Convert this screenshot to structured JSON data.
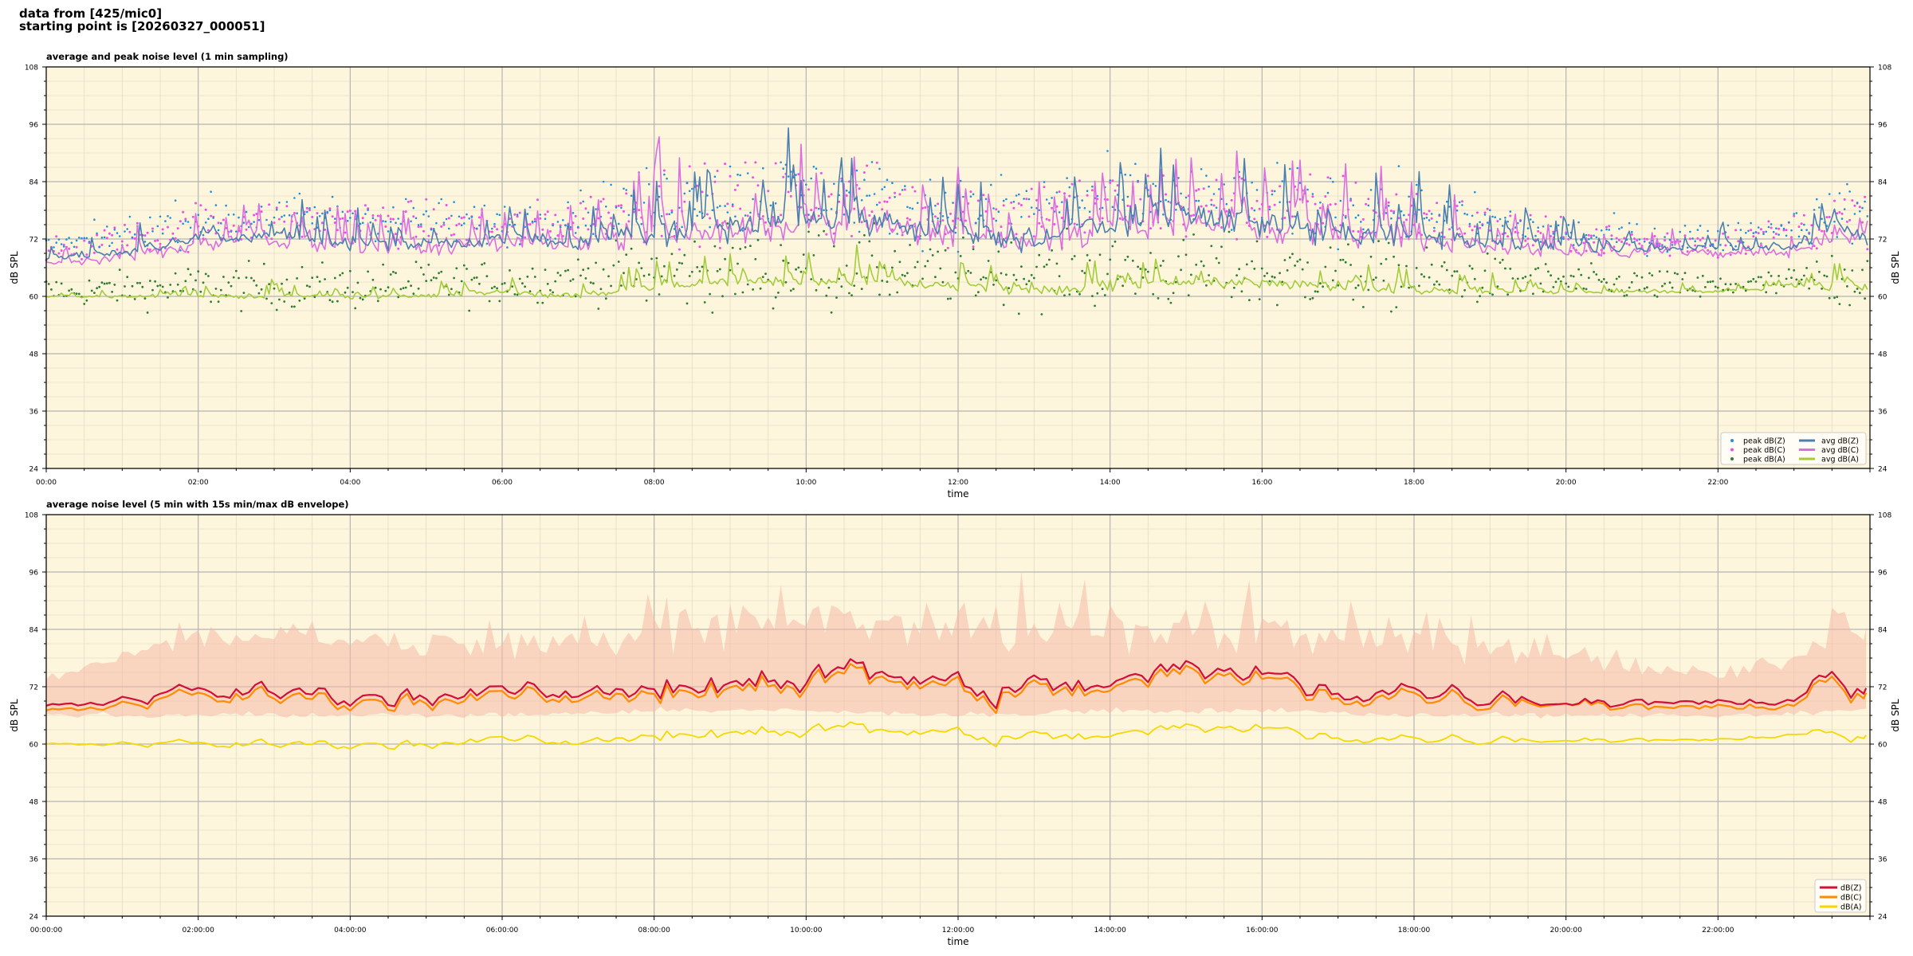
{
  "header": {
    "line1": "data from [425/mic0]",
    "line2": "starting point is [20260327_000051]"
  },
  "colors": {
    "plot_bg": "#fdf6dc",
    "peak_z": "#1f8fd8",
    "peak_c": "#ee4fe6",
    "peak_a": "#2e7d32",
    "avg_z": "#4a7fb0",
    "avg_c": "#dd6ee0",
    "avg_a": "#a3cc3c",
    "env": "#f6b8a8",
    "dbz": "#d0103a",
    "dbc": "#ff8c00",
    "dba": "#f4d800"
  },
  "chart_data": [
    {
      "type": "line",
      "title": "average and peak noise level (1 min sampling)",
      "xlabel": "time",
      "ylabel": "dB SPL",
      "ylim": [
        24,
        108
      ],
      "xlim_hours": [
        0,
        24
      ],
      "yticks": [
        24,
        36,
        48,
        60,
        72,
        84,
        96,
        108
      ],
      "xtick_labels": [
        "00:00",
        "02:00",
        "04:00",
        "06:00",
        "08:00",
        "10:00",
        "12:00",
        "14:00",
        "16:00",
        "18:00",
        "20:00",
        "22:00"
      ],
      "grid": true,
      "legend": "bottom-right",
      "legend_entries": [
        "peak dB(Z)",
        "peak dB(C)",
        "peak dB(A)",
        "avg dB(Z)",
        "avg dB(C)",
        "avg dB(A)"
      ],
      "series": [
        {
          "name": "avg dB(Z)",
          "x": [
            0,
            1,
            2,
            3,
            4,
            5,
            6,
            7,
            8,
            9,
            10,
            11,
            12,
            13,
            14,
            15,
            16,
            17,
            18,
            19,
            20,
            21,
            22,
            23,
            23.5,
            23.95
          ],
          "values": [
            68,
            69,
            72,
            72,
            71,
            71,
            72,
            71,
            73,
            75,
            75,
            76,
            73,
            72,
            74,
            76,
            75,
            73,
            72,
            71,
            70,
            70,
            70,
            70,
            75,
            73
          ]
        },
        {
          "name": "avg dB(C)",
          "x": [
            0,
            1,
            2,
            3,
            4,
            5,
            6,
            7,
            8,
            9,
            10,
            11,
            12,
            13,
            14,
            15,
            16,
            17,
            18,
            19,
            20,
            21,
            22,
            23,
            23.5,
            23.95
          ],
          "values": [
            67,
            68,
            71,
            71,
            70,
            70,
            71,
            70,
            72,
            74,
            74,
            75,
            72,
            71,
            73,
            75,
            74,
            72,
            71,
            70,
            69,
            69,
            69,
            69,
            73,
            72
          ]
        },
        {
          "name": "avg dB(A)",
          "x": [
            0,
            1,
            2,
            3,
            4,
            5,
            6,
            7,
            8,
            9,
            10,
            11,
            12,
            13,
            14,
            15,
            16,
            17,
            18,
            19,
            20,
            21,
            22,
            23,
            23.5,
            23.95
          ],
          "values": [
            60,
            60,
            60,
            60,
            60,
            60,
            61,
            60,
            62,
            63,
            63,
            63,
            62,
            61,
            62,
            63,
            63,
            62,
            61,
            61,
            61,
            61,
            61,
            62,
            62,
            62
          ]
        },
        {
          "name": "peak dB(Z)",
          "x": [
            0,
            2,
            4,
            6,
            8,
            10,
            12,
            14,
            16,
            18,
            20,
            22,
            23.95
          ],
          "values": [
            70,
            76,
            77,
            75,
            80,
            82,
            78,
            80,
            80,
            78,
            73,
            72,
            78
          ]
        },
        {
          "name": "peak dB(C)",
          "x": [
            0,
            2,
            4,
            6,
            8,
            10,
            12,
            14,
            16,
            18,
            20,
            22,
            23.95
          ],
          "values": [
            69,
            75,
            76,
            74,
            79,
            81,
            77,
            79,
            79,
            77,
            72,
            71,
            77
          ]
        },
        {
          "name": "peak dB(A)",
          "x": [
            0,
            2,
            4,
            6,
            8,
            10,
            12,
            14,
            16,
            18,
            20,
            22,
            23.95
          ],
          "values": [
            61,
            62,
            62,
            63,
            65,
            66,
            65,
            65,
            65,
            64,
            63,
            62,
            64
          ]
        }
      ]
    },
    {
      "type": "line",
      "title": "average noise level (5 min with 15s min/max dB envelope)",
      "xlabel": "time",
      "ylabel": "dB SPL",
      "ylim": [
        24,
        108
      ],
      "xlim_hours": [
        0,
        24
      ],
      "yticks": [
        24,
        36,
        48,
        60,
        72,
        84,
        96,
        108
      ],
      "xtick_labels": [
        "00:00:00",
        "02:00:00",
        "04:00:00",
        "06:00:00",
        "08:00:00",
        "10:00:00",
        "12:00:00",
        "14:00:00",
        "16:00:00",
        "18:00:00",
        "20:00:00",
        "22:00:00"
      ],
      "grid": true,
      "legend": "bottom-right",
      "legend_entries": [
        "dB(Z)",
        "dB(C)",
        "dB(A)"
      ],
      "series": [
        {
          "name": "dB(Z)",
          "x": [
            0,
            1,
            2,
            3,
            4,
            5,
            6,
            7,
            8,
            9,
            10,
            11,
            12,
            13,
            14,
            15,
            16,
            17,
            18,
            19,
            20,
            21,
            22,
            23,
            23.5,
            23.95
          ],
          "values": [
            68,
            69,
            71,
            71,
            70,
            70,
            71,
            70,
            72,
            74,
            74,
            75,
            72,
            71,
            73,
            75,
            74,
            72,
            71,
            70,
            69,
            69,
            69,
            69,
            74,
            72
          ]
        },
        {
          "name": "dB(C)",
          "x": [
            0,
            1,
            2,
            3,
            4,
            5,
            6,
            7,
            8,
            9,
            10,
            11,
            12,
            13,
            14,
            15,
            16,
            17,
            18,
            19,
            20,
            21,
            22,
            23,
            23.5,
            23.95
          ],
          "values": [
            67,
            68,
            70,
            70,
            69,
            69,
            70,
            69,
            71,
            73,
            73,
            74,
            71,
            70,
            72,
            74,
            73,
            71,
            70,
            69,
            69,
            68,
            68,
            68,
            73,
            71
          ]
        },
        {
          "name": "dB(A)",
          "x": [
            0,
            1,
            2,
            3,
            4,
            5,
            6,
            7,
            8,
            9,
            10,
            11,
            12,
            13,
            14,
            15,
            16,
            17,
            18,
            19,
            20,
            21,
            22,
            23,
            23.5,
            23.95
          ],
          "values": [
            60,
            60,
            60,
            60,
            60,
            60,
            61,
            60,
            62,
            63,
            63,
            63,
            62,
            61,
            62,
            63,
            63,
            62,
            61,
            61,
            61,
            61,
            61,
            62,
            62,
            62
          ]
        },
        {
          "name": "envelope max",
          "x": [
            0,
            2,
            4,
            6,
            8,
            10,
            12,
            14,
            16,
            18,
            20,
            22,
            23.95
          ],
          "values": [
            74,
            82,
            82,
            80,
            84,
            86,
            84,
            84,
            84,
            82,
            78,
            74,
            82
          ]
        },
        {
          "name": "envelope min",
          "x": [
            0,
            2,
            4,
            6,
            8,
            10,
            12,
            14,
            16,
            18,
            20,
            22,
            23.95
          ],
          "values": [
            66,
            66,
            66,
            66,
            67,
            67,
            66,
            67,
            67,
            66,
            66,
            66,
            67
          ]
        }
      ]
    }
  ]
}
